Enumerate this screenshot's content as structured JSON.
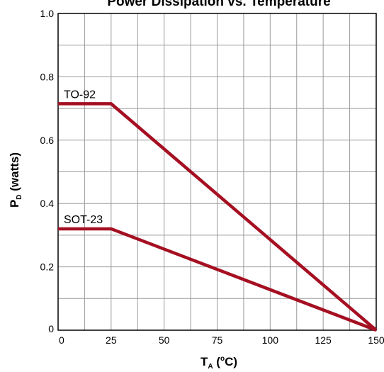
{
  "chart_data": {
    "type": "line",
    "title": "Power Dissipation vs. Temperature",
    "xlabel": {
      "main": "T",
      "subscript": "A",
      "open": " (",
      "superscript": "o",
      "unit": "C)"
    },
    "ylabel": {
      "main": "P",
      "subscript": "D",
      "rest": " (watts)"
    },
    "xlim": [
      0,
      150
    ],
    "ylim": [
      0,
      1.0
    ],
    "x_ticks": [
      0,
      25,
      50,
      75,
      100,
      125,
      150
    ],
    "x_tick_labels": [
      "0",
      "25",
      "50",
      "75",
      "100",
      "125",
      "150"
    ],
    "y_ticks": [
      0,
      0.2,
      0.4,
      0.6,
      0.8,
      1.0
    ],
    "y_tick_labels": [
      "0",
      "0.2",
      "0.4",
      "0.6",
      "0.8",
      "1.0"
    ],
    "grid": true,
    "grid_x_step": 12.5,
    "grid_y_step": 0.1,
    "line_color": "#a50f22",
    "series": [
      {
        "name": "TO-92",
        "x": [
          0,
          25,
          150
        ],
        "y": [
          0.715,
          0.715,
          0
        ]
      },
      {
        "name": "SOT-23",
        "x": [
          0,
          25,
          150
        ],
        "y": [
          0.32,
          0.32,
          0
        ]
      }
    ]
  }
}
